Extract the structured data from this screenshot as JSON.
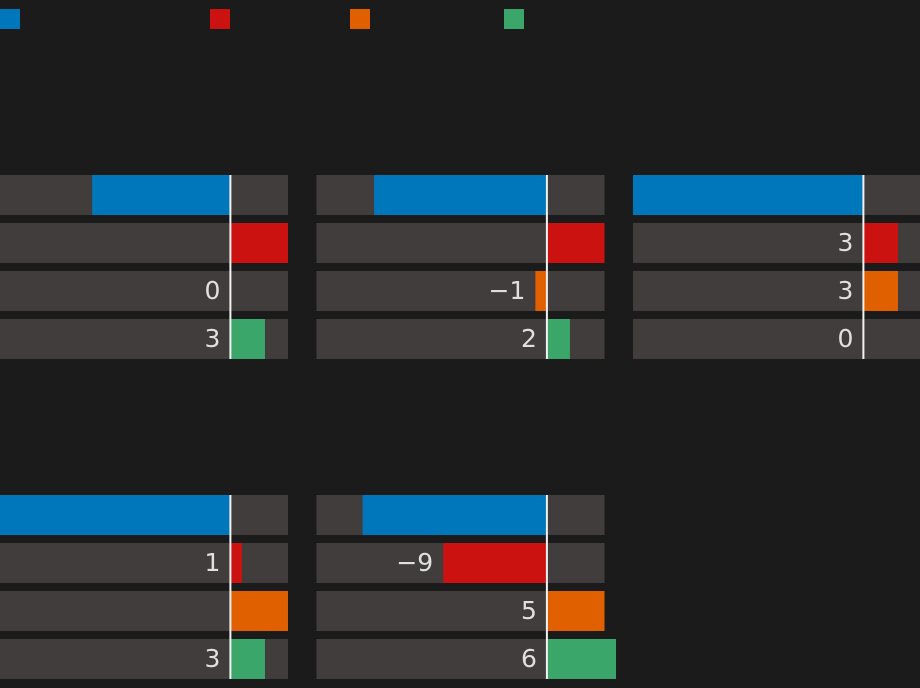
{
  "chart_data": {
    "type": "bar",
    "orientation": "horizontal",
    "legend_position": "top",
    "series": [
      {
        "name": "",
        "color": "#0077bb"
      },
      {
        "name": "",
        "color": "#cc1111"
      },
      {
        "name": "",
        "color": "#e06000"
      },
      {
        "name": "",
        "color": "#3aa66a"
      }
    ],
    "colors": {
      "background": "#1b1b1b",
      "track": "#403d3c",
      "zero_line": "#f2f2f2",
      "value_text": "#e0e0e0"
    },
    "panels": [
      {
        "xlim": [
          -20,
          5
        ],
        "values": [
          -12,
          5,
          0,
          3
        ],
        "labels": [
          "",
          "",
          "0",
          "3"
        ]
      },
      {
        "xlim": [
          -20,
          5
        ],
        "values": [
          -15,
          5,
          -1,
          2
        ],
        "labels": [
          "",
          "",
          "−1",
          "2"
        ]
      },
      {
        "xlim": [
          -20,
          5
        ],
        "values": [
          -20,
          3,
          3,
          0
        ],
        "labels": [
          "",
          "3",
          "3",
          "0"
        ]
      },
      {
        "xlim": [
          -20,
          5
        ],
        "values": [
          -20,
          1,
          5,
          3
        ],
        "labels": [
          "",
          "1",
          "",
          "3"
        ]
      },
      {
        "xlim": [
          -20,
          5
        ],
        "values": [
          -16,
          -9,
          5,
          6
        ],
        "labels": [
          "",
          "−9",
          "5",
          "6"
        ]
      }
    ]
  }
}
